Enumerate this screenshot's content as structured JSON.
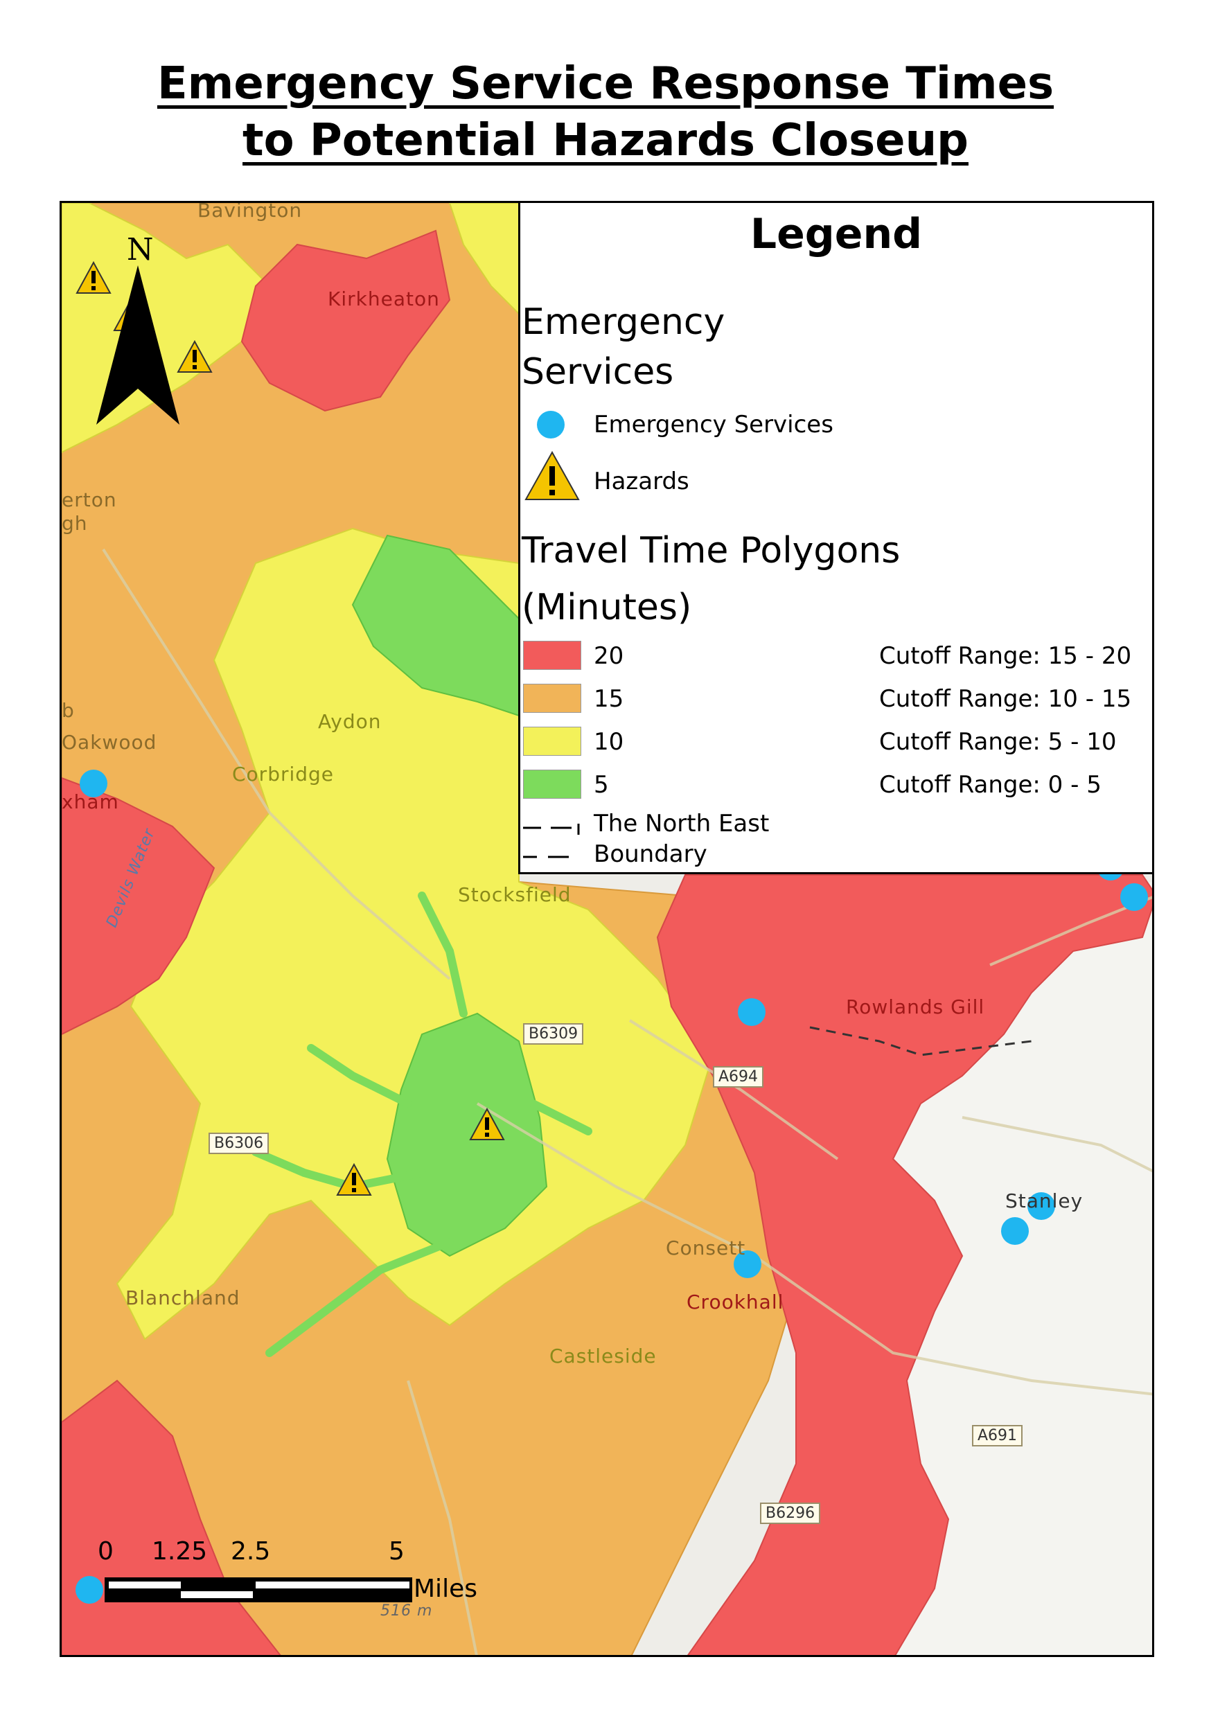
{
  "title": {
    "line1": "Emergency Service Response Times",
    "line2": "to Potential Hazards Closeup"
  },
  "north_arrow": {
    "label": "N"
  },
  "legend": {
    "title": "Legend",
    "emergency_heading": "Emergency Services",
    "emergency_item": "Emergency Services",
    "hazards_item": "Hazards",
    "travel_heading": "Travel Time Polygons",
    "travel_subheading": "(Minutes)",
    "polygons": [
      {
        "label": "20",
        "range": "Cutoff Range: 15 - 20",
        "color": "#f25b5b"
      },
      {
        "label": "15",
        "range": "Cutoff Range: 10 - 15",
        "color": "#f1b458"
      },
      {
        "label": "10",
        "range": "Cutoff Range: 5 - 10",
        "color": "#f3f15a"
      },
      {
        "label": "5",
        "range": "Cutoff Range: 0 - 5",
        "color": "#7ddb5c"
      }
    ],
    "boundary_line1": "The North East",
    "boundary_line2": "Boundary"
  },
  "places": {
    "bavington": "Bavington",
    "kirkheaton": "Kirkheaton",
    "erton": "erton",
    "gh": "gh",
    "aydon": "Aydon",
    "b": "b",
    "oakwood": "Oakwood",
    "corbridge": "Corbridge",
    "hexham": "xham",
    "stocksfield": "Stocksfield",
    "rowlands_gill": "Rowlands Gill",
    "stanley": "Stanley",
    "consett": "Consett",
    "crookhall": "Crookhall",
    "blanchland": "Blanchland",
    "castleside": "Castleside",
    "devils_water": "Devils Water",
    "spot_height": "516 m"
  },
  "roads": {
    "b6309": "B6309",
    "a694": "A694",
    "b6306": "B6306",
    "a691": "A691",
    "b6296": "B6296"
  },
  "scale_bar": {
    "ticks": [
      "0",
      "1.25",
      "2.5",
      "5"
    ],
    "units": "Miles"
  },
  "colors": {
    "emergency_service": "#1fb6f0",
    "hazard": "#f5c400",
    "zone_20": "#f25b5b",
    "zone_15": "#f1b458",
    "zone_10": "#f3f15a",
    "zone_5": "#7ddb5c"
  }
}
